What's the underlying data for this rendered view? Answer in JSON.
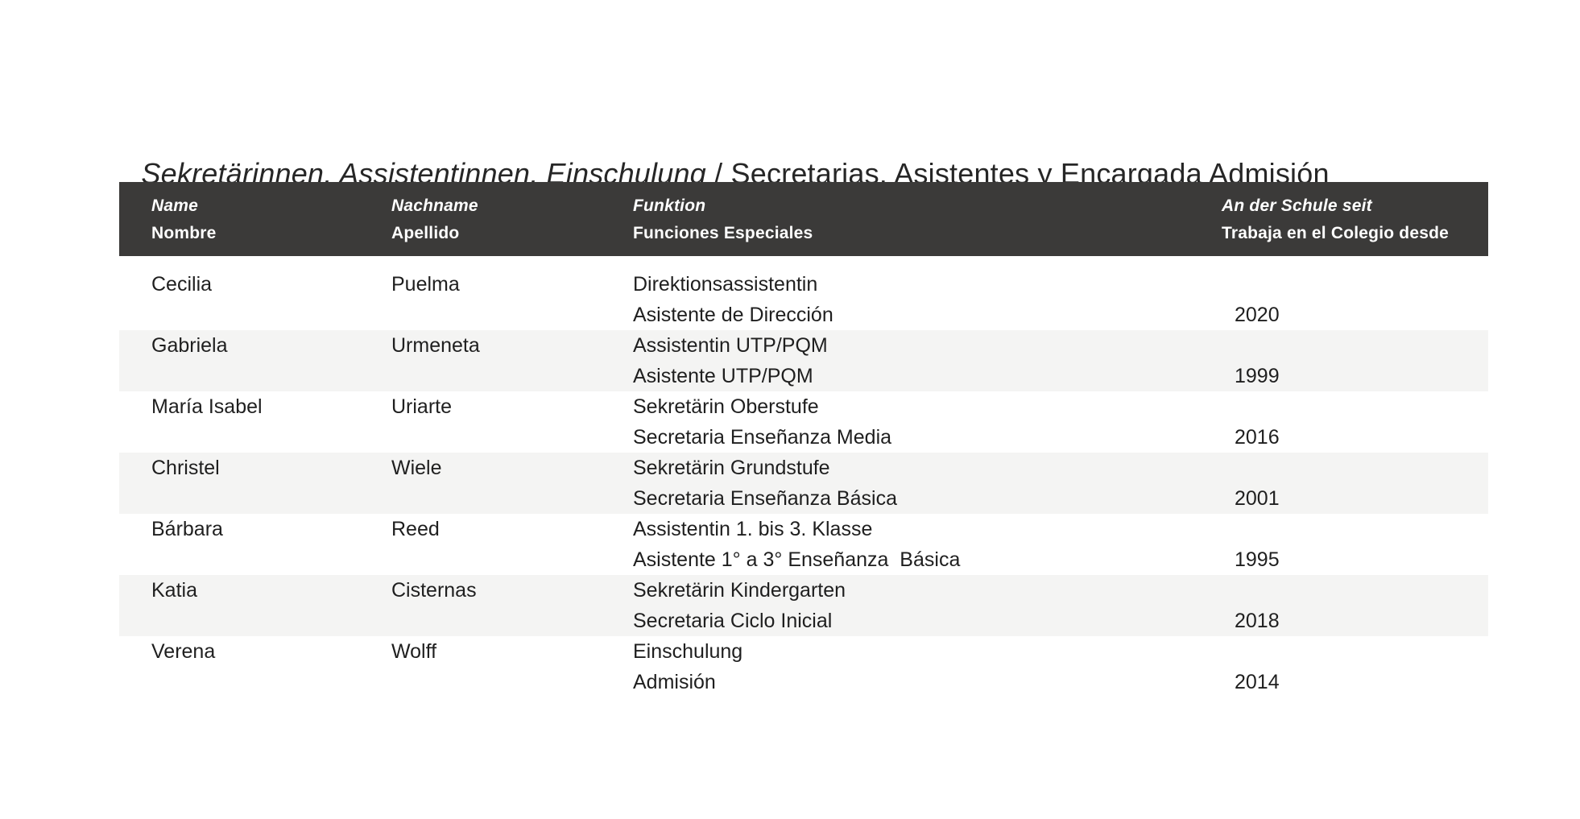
{
  "page": {
    "background": "#ffffff",
    "text_color": "#1f1f1f"
  },
  "title": {
    "de": "Sekretärinnen, Assistentinnen, Einschulung",
    "separator": " / ",
    "es": "Secretarias, Asistentes y Encargada Admisión"
  },
  "table": {
    "header_bg": "#3b3a39",
    "header_text_color": "#ffffff",
    "stripe_color": "#f4f4f3",
    "header": {
      "columns": [
        {
          "de": "Name",
          "es": "Nombre"
        },
        {
          "de": "Nachname",
          "es": "Apellido"
        },
        {
          "de": "Funktion",
          "es": "Funciones Especiales"
        },
        {
          "de": "An der Schule seit",
          "es": "Trabaja en el Colegio desde"
        }
      ]
    },
    "rows": [
      {
        "name": "Cecilia",
        "surname": "Puelma",
        "function_de": "Direktionsassistentin",
        "function_es": "Asistente de Dirección",
        "since": "2020"
      },
      {
        "name": "Gabriela",
        "surname": "Urmeneta",
        "function_de": "Assistentin UTP/PQM",
        "function_es": "Asistente UTP/PQM",
        "since": "1999"
      },
      {
        "name": "María Isabel",
        "surname": "Uriarte",
        "function_de": "Sekretärin Oberstufe",
        "function_es": "Secretaria Enseñanza Media",
        "since": "2016"
      },
      {
        "name": "Christel",
        "surname": "Wiele",
        "function_de": "Sekretärin Grundstufe",
        "function_es": "Secretaria Enseñanza Básica",
        "since": "2001"
      },
      {
        "name": "Bárbara",
        "surname": "Reed",
        "function_de": "Assistentin 1. bis 3. Klasse",
        "function_es": "Asistente 1° a 3° Enseñanza  Básica",
        "since": "1995"
      },
      {
        "name": "Katia",
        "surname": "Cisternas",
        "function_de": "Sekretärin Kindergarten",
        "function_es": "Secretaria Ciclo Inicial",
        "since": "2018"
      },
      {
        "name": "Verena",
        "surname": "Wolff",
        "function_de": "Einschulung",
        "function_es": "Admisión",
        "since": "2014"
      }
    ]
  }
}
